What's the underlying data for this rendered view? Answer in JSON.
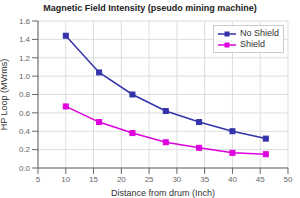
{
  "chart_data": {
    "type": "line",
    "title": "Magnetic Field Intensity (pseudo mining machine)",
    "xlabel": "Distance from drum (Inch)",
    "ylabel": "HP Loop (MVrms)",
    "x": [
      10,
      16,
      22,
      28,
      34,
      40,
      46
    ],
    "series": [
      {
        "name": "No Shield",
        "color": "#3333aa",
        "values": [
          1.44,
          1.04,
          0.8,
          0.62,
          0.5,
          0.4,
          0.32
        ],
        "marker": "square"
      },
      {
        "name": "Shield",
        "color": "#dd00dd",
        "values": [
          0.67,
          0.5,
          0.38,
          0.28,
          0.22,
          0.165,
          0.15
        ],
        "marker": "square"
      }
    ],
    "xlim": [
      5,
      50
    ],
    "ylim": [
      0,
      1.6
    ],
    "xticks": [
      5,
      10,
      15,
      20,
      25,
      30,
      35,
      40,
      45,
      50
    ],
    "yticks": [
      {
        "value": 0,
        "label": "0.0"
      },
      0.2,
      0.4,
      0.6,
      0.8,
      {
        "value": 1.0,
        "label": "1.0"
      },
      1.2,
      1.4,
      1.6
    ],
    "grid": true,
    "legend": "upper right"
  }
}
